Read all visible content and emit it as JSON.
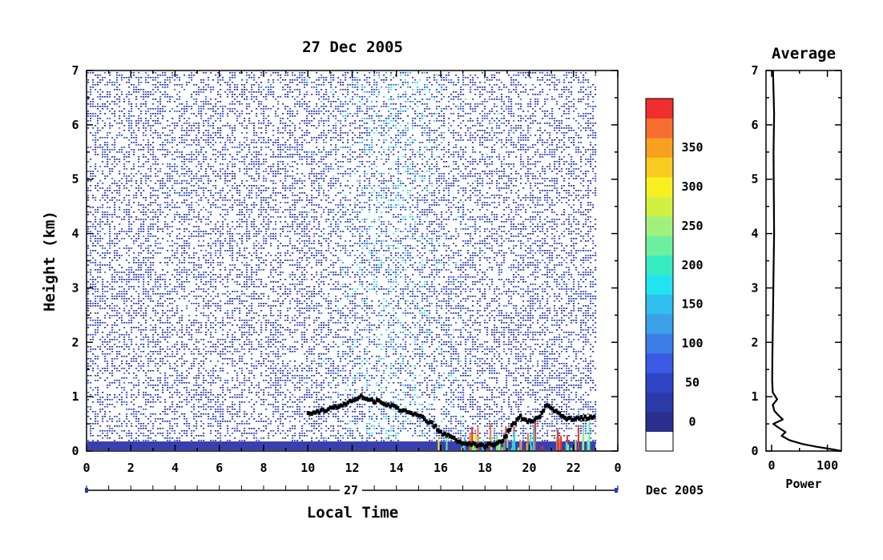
{
  "chart_data": [
    {
      "type": "heatmap",
      "title": "27 Dec 2005",
      "xlabel": "Local Time",
      "ylabel": "Height (km)",
      "x_ticks": [
        "0",
        "2",
        "4",
        "6",
        "8",
        "10",
        "12",
        "14",
        "16",
        "18",
        "20",
        "22",
        "0"
      ],
      "y_ticks": [
        "0",
        "1",
        "2",
        "3",
        "4",
        "5",
        "6",
        "7"
      ],
      "xlim": [
        0,
        24
      ],
      "data_end_hour": 23,
      "ylim": [
        0,
        7
      ],
      "date_bar_label": "27",
      "date_suffix": "Dec 2005",
      "colorbar": {
        "ticks": [
          "0",
          "50",
          "100",
          "150",
          "200",
          "250",
          "300",
          "350"
        ],
        "range": [
          0,
          380
        ],
        "colors": [
          "#ffffff",
          "#2a2e8c",
          "#2b3aa8",
          "#2f45c6",
          "#3a5ae6",
          "#3c7de8",
          "#3aa0ea",
          "#30bfee",
          "#22e4f0",
          "#38ecc2",
          "#6cf0a0",
          "#a2f07c",
          "#d2f040",
          "#f8f020",
          "#f8cc20",
          "#f8a020",
          "#f86e30",
          "#f02e2e"
        ]
      },
      "boundary_layer_trace": [
        {
          "x": 10.0,
          "y": 0.68
        },
        {
          "x": 11.0,
          "y": 0.78
        },
        {
          "x": 11.8,
          "y": 0.88
        },
        {
          "x": 12.4,
          "y": 1.0
        },
        {
          "x": 12.8,
          "y": 0.95
        },
        {
          "x": 13.2,
          "y": 0.9
        },
        {
          "x": 13.8,
          "y": 0.82
        },
        {
          "x": 14.4,
          "y": 0.72
        },
        {
          "x": 15.0,
          "y": 0.66
        },
        {
          "x": 15.6,
          "y": 0.5
        },
        {
          "x": 16.0,
          "y": 0.35
        },
        {
          "x": 16.6,
          "y": 0.22
        },
        {
          "x": 17.2,
          "y": 0.14
        },
        {
          "x": 17.8,
          "y": 0.1
        },
        {
          "x": 18.4,
          "y": 0.12
        },
        {
          "x": 18.8,
          "y": 0.2
        },
        {
          "x": 19.2,
          "y": 0.45
        },
        {
          "x": 19.6,
          "y": 0.62
        },
        {
          "x": 20.0,
          "y": 0.55
        },
        {
          "x": 20.4,
          "y": 0.6
        },
        {
          "x": 20.8,
          "y": 0.85
        },
        {
          "x": 21.2,
          "y": 0.72
        },
        {
          "x": 21.6,
          "y": 0.62
        },
        {
          "x": 22.0,
          "y": 0.58
        },
        {
          "x": 22.6,
          "y": 0.62
        },
        {
          "x": 23.0,
          "y": 0.65
        }
      ]
    },
    {
      "type": "line",
      "title": "Average",
      "xlabel": "Power",
      "x_ticks": [
        "0",
        "100"
      ],
      "y_ticks": [
        "0",
        "1",
        "2",
        "3",
        "4",
        "5",
        "6",
        "7"
      ],
      "xlim": [
        -10,
        125
      ],
      "ylim": [
        0,
        7
      ],
      "series": [
        {
          "points": [
            {
              "x": 125,
              "y": 0.0
            },
            {
              "x": 110,
              "y": 0.03
            },
            {
              "x": 80,
              "y": 0.08
            },
            {
              "x": 55,
              "y": 0.13
            },
            {
              "x": 32,
              "y": 0.2
            },
            {
              "x": 18,
              "y": 0.28
            },
            {
              "x": 25,
              "y": 0.35
            },
            {
              "x": 14,
              "y": 0.42
            },
            {
              "x": 3,
              "y": 0.5
            },
            {
              "x": 20,
              "y": 0.58
            },
            {
              "x": 12,
              "y": 0.66
            },
            {
              "x": 5,
              "y": 0.74
            },
            {
              "x": 2,
              "y": 0.85
            },
            {
              "x": 10,
              "y": 0.95
            },
            {
              "x": 2,
              "y": 1.08
            },
            {
              "x": 1,
              "y": 1.3
            },
            {
              "x": 1.5,
              "y": 1.8
            },
            {
              "x": 2.5,
              "y": 2.5
            },
            {
              "x": 3.5,
              "y": 3.3
            },
            {
              "x": 4.5,
              "y": 4.0
            },
            {
              "x": 4,
              "y": 4.8
            },
            {
              "x": 3.5,
              "y": 5.5
            },
            {
              "x": 4.5,
              "y": 6.2
            },
            {
              "x": 3.5,
              "y": 6.6
            },
            {
              "x": 2.5,
              "y": 7.0
            }
          ]
        }
      ]
    }
  ]
}
